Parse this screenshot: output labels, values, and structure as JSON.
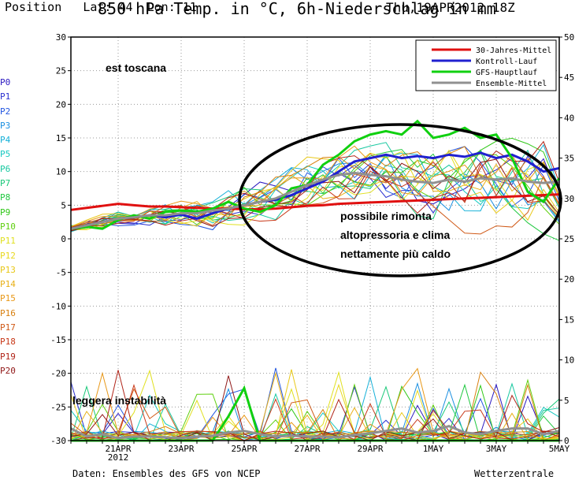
{
  "header": {
    "position_label": "Position",
    "lat_label": "Lat: 44",
    "lon_label": "Lon: 11",
    "title": "850 hPa Temp. in °C, 6h-Niederschlag in mm",
    "run_date": "Thu,19APR2012 18Z"
  },
  "footer": {
    "source": "Daten: Ensembles des GFS von NCEP",
    "site": "Wetterzentrale"
  },
  "members": [
    {
      "label": "P0",
      "color": "#2a18c0"
    },
    {
      "label": "P1",
      "color": "#2a30d0"
    },
    {
      "label": "P2",
      "color": "#2256e0"
    },
    {
      "label": "P3",
      "color": "#1a8fe0"
    },
    {
      "label": "P4",
      "color": "#14b0d8"
    },
    {
      "label": "P5",
      "color": "#18c8c0"
    },
    {
      "label": "P6",
      "color": "#18c8a0"
    },
    {
      "label": "P7",
      "color": "#18c878"
    },
    {
      "label": "P8",
      "color": "#20c840"
    },
    {
      "label": "P9",
      "color": "#30c818"
    },
    {
      "label": "P10",
      "color": "#60d010"
    },
    {
      "label": "P11",
      "color": "#e0e020"
    },
    {
      "label": "P12",
      "color": "#e8d820"
    },
    {
      "label": "P13",
      "color": "#e8c818"
    },
    {
      "label": "P14",
      "color": "#e8b018"
    },
    {
      "label": "P15",
      "color": "#e89818"
    },
    {
      "label": "P16",
      "color": "#d88010"
    },
    {
      "label": "P17",
      "color": "#d05a18"
    },
    {
      "label": "P18",
      "color": "#c83818"
    },
    {
      "label": "P19",
      "color": "#b02418"
    },
    {
      "label": "P20",
      "color": "#901818"
    }
  ],
  "annotations": {
    "region": "est toscana",
    "rise_line1": "possibile rimonta",
    "rise_line2": "altopressoria e clima",
    "rise_line3": "nettamente più caldo",
    "instability": "leggera instabilità"
  },
  "chart_data": {
    "type": "line",
    "ylim_left": [
      -30,
      30
    ],
    "yticks_left": [
      30,
      25,
      20,
      15,
      10,
      5,
      0,
      -5,
      -10,
      -15,
      -20,
      -25,
      -30
    ],
    "ylim_right": [
      0,
      50
    ],
    "yticks_right": [
      50,
      45,
      40,
      35,
      30,
      25,
      20,
      15,
      10,
      5,
      0
    ],
    "xlim_days": [
      0,
      15.5
    ],
    "xtick_labels": [
      "21APR",
      "23APR",
      "25APR",
      "27APR",
      "29APR",
      "1MAY",
      "3MAY",
      "5MAY"
    ],
    "xtick_sublabel": "2012",
    "legend": {
      "placement": "top-right",
      "entries": [
        {
          "name": "30-Jahres-Mittel",
          "color": "#e01010"
        },
        {
          "name": "Kontroll-Lauf",
          "color": "#2020d0"
        },
        {
          "name": "GFS-Hauptlauf",
          "color": "#10d010"
        },
        {
          "name": "Ensemble-Mittel",
          "color": "#909090"
        }
      ]
    },
    "x_days": [
      0,
      0.5,
      1,
      1.5,
      2,
      2.5,
      3,
      3.5,
      4,
      4.5,
      5,
      5.5,
      6,
      6.5,
      7,
      7.5,
      8,
      8.5,
      9,
      9.5,
      10,
      10.5,
      11,
      11.5,
      12,
      12.5,
      13,
      13.5,
      14,
      14.5,
      15,
      15.5
    ],
    "series": [
      {
        "name": "30-Jahres-Mittel",
        "color": "#e01010",
        "width": 3,
        "values": [
          4.3,
          4.6,
          4.9,
          5.2,
          5.0,
          4.8,
          4.8,
          4.7,
          4.6,
          4.5,
          4.5,
          4.4,
          4.4,
          4.5,
          4.7,
          4.9,
          5.0,
          5.2,
          5.3,
          5.4,
          5.5,
          5.6,
          5.7,
          5.8,
          5.9,
          6.0,
          6.1,
          6.2,
          6.3,
          6.4,
          6.5,
          6.6
        ]
      },
      {
        "name": "Kontroll-Lauf",
        "color": "#2020d0",
        "width": 3,
        "values": [
          1.5,
          2.0,
          2.5,
          3.0,
          3.2,
          3.5,
          3.2,
          3.6,
          3.0,
          3.8,
          4.5,
          5.0,
          5.5,
          5.8,
          6.5,
          7.5,
          8.5,
          10.0,
          11.5,
          12.0,
          12.5,
          12.0,
          12.3,
          12.0,
          12.5,
          12.2,
          12.8,
          12.0,
          12.5,
          11.5,
          10.0,
          10.5
        ]
      },
      {
        "name": "GFS-Hauptlauf",
        "color": "#10d010",
        "width": 3,
        "values": [
          1.5,
          1.8,
          1.5,
          2.8,
          3.5,
          3.0,
          4.0,
          4.2,
          4.0,
          4.5,
          5.5,
          4.5,
          4.0,
          5.0,
          7.5,
          8.0,
          11.0,
          12.5,
          14.5,
          15.5,
          16.0,
          15.5,
          17.5,
          15.0,
          15.5,
          16.5,
          15.0,
          15.5,
          12.0,
          7.0,
          5.5,
          9.0
        ]
      },
      {
        "name": "Ensemble-Mittel",
        "color": "#909090",
        "width": 3,
        "values": [
          1.5,
          2.0,
          2.5,
          3.0,
          3.2,
          3.5,
          3.5,
          3.8,
          3.8,
          4.2,
          4.5,
          5.0,
          5.5,
          6.0,
          7.0,
          8.0,
          8.8,
          9.5,
          9.8,
          9.5,
          9.3,
          8.8,
          8.5,
          8.3,
          8.8,
          8.5,
          9.0,
          8.8,
          9.0,
          8.5,
          8.3,
          8.5
        ]
      }
    ],
    "precip_series": [
      {
        "name": "GFS-Hauptlauf",
        "color": "#10d010",
        "width": 3,
        "values": [
          0,
          0,
          0,
          0,
          0,
          0,
          0,
          0,
          0,
          0,
          3,
          6.5,
          0,
          0,
          0,
          0,
          0,
          0,
          0,
          0,
          0,
          0,
          0,
          0,
          0,
          0,
          0,
          0,
          0,
          0,
          0,
          0
        ]
      },
      {
        "name": "Ensemble-Mittel",
        "color": "#909090",
        "width": 3,
        "values": [
          1.5,
          0.5,
          0.8,
          0.3,
          0.5,
          0.5,
          0.4,
          0.3,
          0.5,
          0.6,
          1.0,
          1.2,
          0.8,
          0.5,
          0.6,
          0.5,
          0.5,
          0.4,
          0.7,
          0.9,
          1.2,
          1.5,
          1.0,
          1.2,
          1.8,
          1.0,
          0.8,
          1.2,
          1.5,
          1.5,
          0.8,
          1.2
        ]
      }
    ]
  }
}
